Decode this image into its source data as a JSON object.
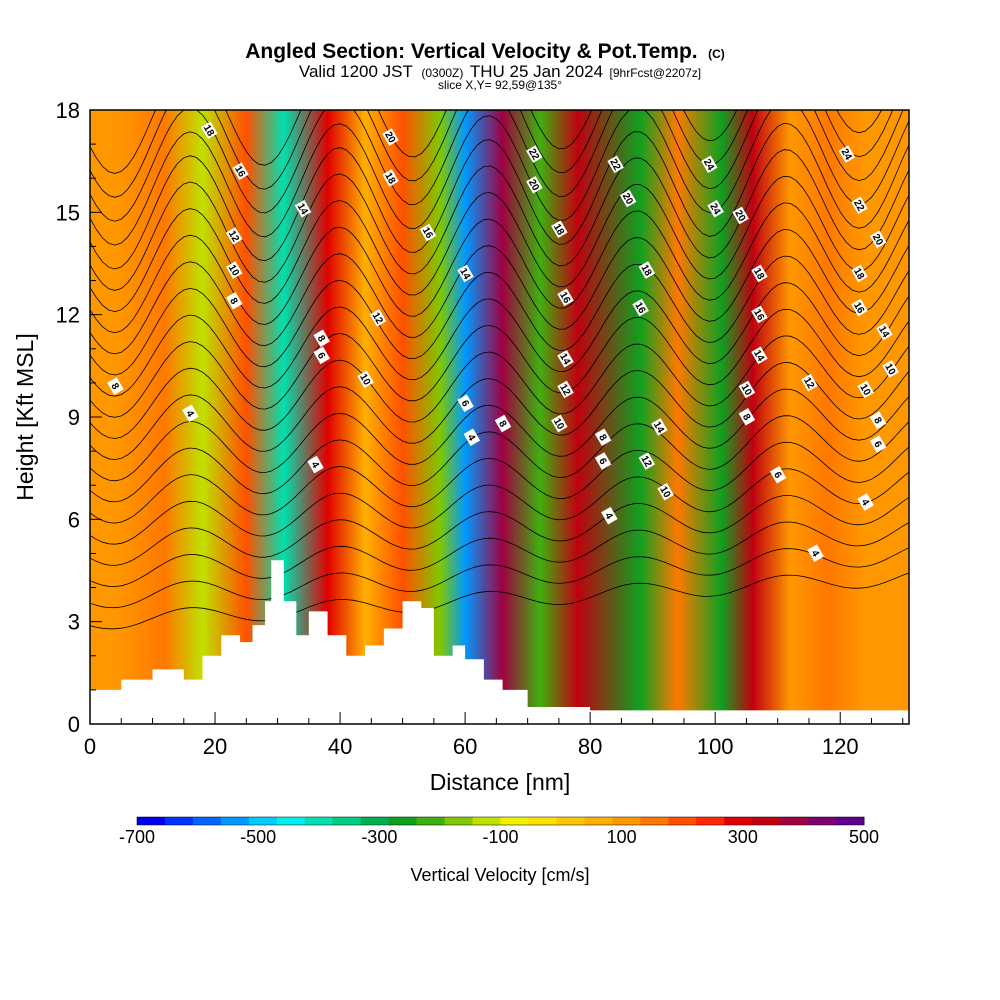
{
  "header": {
    "title": "Angled Section: Vertical Velocity & Pot.Temp.",
    "title_units": "(C)",
    "valid_prefix": "Valid 1200 JST",
    "valid_utc": "(0300Z)",
    "valid_date": "THU 25 Jan 2024",
    "forecast_info": "[9hrFcst@2207z]",
    "slice_info": "slice X,Y= 92,59@135°"
  },
  "chart_data": {
    "type": "heatmap",
    "xlabel": "Distance [nm]",
    "ylabel": "Height [Kft MSL]",
    "xlim": [
      0,
      131
    ],
    "ylim": [
      0,
      18
    ],
    "x_ticks": [
      0,
      20,
      40,
      60,
      80,
      100,
      120
    ],
    "y_ticks": [
      0,
      3,
      6,
      9,
      12,
      15,
      18
    ],
    "grid": false,
    "colorbar": {
      "title": "Vertical Velocity [cm/s]",
      "range": [
        -700,
        500
      ],
      "tick_labels": [
        "-700",
        "-500",
        "-300",
        "-100",
        "100",
        "300",
        "500"
      ],
      "tick_values": [
        -700,
        -500,
        -300,
        -100,
        100,
        300,
        500
      ],
      "colors": [
        "#0000f0",
        "#0033ff",
        "#0066ff",
        "#0099ff",
        "#00ccff",
        "#00f0f0",
        "#00e0b0",
        "#00cc80",
        "#00b050",
        "#10a020",
        "#40b010",
        "#80c800",
        "#c0e000",
        "#f0f000",
        "#ffe000",
        "#ffc800",
        "#ffb000",
        "#ff9800",
        "#ff7800",
        "#ff5000",
        "#ff2800",
        "#e00000",
        "#c00010",
        "#a00040",
        "#800070",
        "#600090"
      ]
    },
    "velocity_bands": [
      {
        "x": 4,
        "value": 90
      },
      {
        "x": 12,
        "value": 170
      },
      {
        "x": 18,
        "value": -120
      },
      {
        "x": 25,
        "value": 220
      },
      {
        "x": 31,
        "value": -420
      },
      {
        "x": 38,
        "value": 300
      },
      {
        "x": 44,
        "value": 60
      },
      {
        "x": 50,
        "value": 180
      },
      {
        "x": 56,
        "value": -150
      },
      {
        "x": 60,
        "value": -560
      },
      {
        "x": 66,
        "value": 380
      },
      {
        "x": 72,
        "value": -220
      },
      {
        "x": 78,
        "value": 330
      },
      {
        "x": 88,
        "value": -250
      },
      {
        "x": 94,
        "value": 160
      },
      {
        "x": 101,
        "value": -260
      },
      {
        "x": 106,
        "value": 340
      },
      {
        "x": 112,
        "value": 110
      },
      {
        "x": 118,
        "value": 160
      },
      {
        "x": 124,
        "value": 130
      },
      {
        "x": 130,
        "value": 100
      }
    ],
    "terrain": [
      {
        "x": 0,
        "h": 1.0
      },
      {
        "x": 5,
        "h": 1.3
      },
      {
        "x": 10,
        "h": 1.6
      },
      {
        "x": 15,
        "h": 1.3
      },
      {
        "x": 18,
        "h": 2.0
      },
      {
        "x": 21,
        "h": 2.6
      },
      {
        "x": 24,
        "h": 2.4
      },
      {
        "x": 26,
        "h": 2.9
      },
      {
        "x": 28,
        "h": 3.6
      },
      {
        "x": 29,
        "h": 4.8
      },
      {
        "x": 31,
        "h": 3.6
      },
      {
        "x": 33,
        "h": 2.6
      },
      {
        "x": 35,
        "h": 3.3
      },
      {
        "x": 38,
        "h": 2.6
      },
      {
        "x": 41,
        "h": 2.0
      },
      {
        "x": 44,
        "h": 2.3
      },
      {
        "x": 47,
        "h": 2.8
      },
      {
        "x": 50,
        "h": 3.6
      },
      {
        "x": 53,
        "h": 3.4
      },
      {
        "x": 55,
        "h": 2.0
      },
      {
        "x": 58,
        "h": 2.3
      },
      {
        "x": 60,
        "h": 1.9
      },
      {
        "x": 63,
        "h": 1.3
      },
      {
        "x": 66,
        "h": 1.0
      },
      {
        "x": 70,
        "h": 0.5
      },
      {
        "x": 80,
        "h": 0.4
      },
      {
        "x": 100,
        "h": 0.4
      },
      {
        "x": 131,
        "h": 0.4
      }
    ],
    "contour_labels": [
      {
        "text": "18",
        "x": 19,
        "y": 17.4
      },
      {
        "text": "16",
        "x": 24,
        "y": 16.2
      },
      {
        "text": "14",
        "x": 34,
        "y": 15.1
      },
      {
        "text": "12",
        "x": 23,
        "y": 14.3
      },
      {
        "text": "10",
        "x": 23,
        "y": 13.3
      },
      {
        "text": "8",
        "x": 23,
        "y": 12.4
      },
      {
        "text": "8",
        "x": 4,
        "y": 9.9
      },
      {
        "text": "4",
        "x": 16,
        "y": 9.1
      },
      {
        "text": "20",
        "x": 48,
        "y": 17.2
      },
      {
        "text": "18",
        "x": 48,
        "y": 16.0
      },
      {
        "text": "16",
        "x": 54,
        "y": 14.4
      },
      {
        "text": "12",
        "x": 46,
        "y": 11.9
      },
      {
        "text": "8",
        "x": 37,
        "y": 11.3
      },
      {
        "text": "6",
        "x": 37,
        "y": 10.8
      },
      {
        "text": "10",
        "x": 44,
        "y": 10.1
      },
      {
        "text": "4",
        "x": 36,
        "y": 7.6
      },
      {
        "text": "14",
        "x": 60,
        "y": 13.2
      },
      {
        "text": "6",
        "x": 60,
        "y": 9.4
      },
      {
        "text": "4",
        "x": 61,
        "y": 8.4
      },
      {
        "text": "8",
        "x": 66,
        "y": 8.8
      },
      {
        "text": "22",
        "x": 71,
        "y": 16.7
      },
      {
        "text": "20",
        "x": 71,
        "y": 15.8
      },
      {
        "text": "18",
        "x": 75,
        "y": 14.5
      },
      {
        "text": "16",
        "x": 76,
        "y": 12.5
      },
      {
        "text": "14",
        "x": 76,
        "y": 10.7
      },
      {
        "text": "12",
        "x": 76,
        "y": 9.8
      },
      {
        "text": "10",
        "x": 75,
        "y": 8.8
      },
      {
        "text": "22",
        "x": 84,
        "y": 16.4
      },
      {
        "text": "20",
        "x": 86,
        "y": 15.4
      },
      {
        "text": "18",
        "x": 89,
        "y": 13.3
      },
      {
        "text": "16",
        "x": 88,
        "y": 12.2
      },
      {
        "text": "8",
        "x": 82,
        "y": 8.4
      },
      {
        "text": "6",
        "x": 82,
        "y": 7.7
      },
      {
        "text": "4",
        "x": 83,
        "y": 6.1
      },
      {
        "text": "14",
        "x": 91,
        "y": 8.7
      },
      {
        "text": "12",
        "x": 89,
        "y": 7.7
      },
      {
        "text": "10",
        "x": 92,
        "y": 6.8
      },
      {
        "text": "24",
        "x": 99,
        "y": 16.4
      },
      {
        "text": "24",
        "x": 100,
        "y": 15.1
      },
      {
        "text": "20",
        "x": 104,
        "y": 14.9
      },
      {
        "text": "18",
        "x": 107,
        "y": 13.2
      },
      {
        "text": "16",
        "x": 107,
        "y": 12.0
      },
      {
        "text": "14",
        "x": 107,
        "y": 10.8
      },
      {
        "text": "10",
        "x": 105,
        "y": 9.8
      },
      {
        "text": "8",
        "x": 105,
        "y": 9.0
      },
      {
        "text": "6",
        "x": 110,
        "y": 7.3
      },
      {
        "text": "4",
        "x": 116,
        "y": 5.0
      },
      {
        "text": "12",
        "x": 115,
        "y": 10.0
      },
      {
        "text": "24",
        "x": 121,
        "y": 16.7
      },
      {
        "text": "22",
        "x": 123,
        "y": 15.2
      },
      {
        "text": "20",
        "x": 126,
        "y": 14.2
      },
      {
        "text": "18",
        "x": 123,
        "y": 13.2
      },
      {
        "text": "16",
        "x": 123,
        "y": 12.2
      },
      {
        "text": "14",
        "x": 127,
        "y": 11.5
      },
      {
        "text": "10",
        "x": 128,
        "y": 10.4
      },
      {
        "text": "10",
        "x": 124,
        "y": 9.8
      },
      {
        "text": "8",
        "x": 126,
        "y": 8.9
      },
      {
        "text": "6",
        "x": 126,
        "y": 8.2
      },
      {
        "text": "4",
        "x": 124,
        "y": 6.5
      }
    ]
  }
}
